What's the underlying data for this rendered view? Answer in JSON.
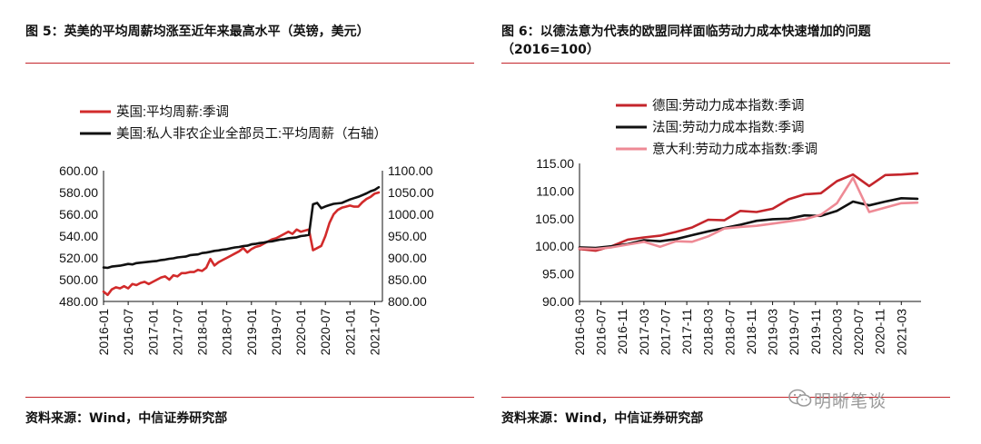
{
  "left": {
    "title": "图 5：英美的平均周薪均涨至近年来最高水平（英镑，美元）",
    "source": "资料来源：Wind，中信证券研究部",
    "chart_data": {
      "type": "line",
      "x_ticks": [
        "2016-01",
        "2016-07",
        "2017-01",
        "2017-07",
        "2018-01",
        "2018-07",
        "2019-01",
        "2019-07",
        "2020-01",
        "2020-07",
        "2021-01",
        "2021-07"
      ],
      "y_left_ticks": [
        "600.00",
        "580.00",
        "560.00",
        "540.00",
        "520.00",
        "500.00",
        "480.00"
      ],
      "y_right_ticks": [
        "1100.00",
        "1050.00",
        "1000.00",
        "950.00",
        "900.00",
        "850.00",
        "800.00"
      ],
      "ylim_left": [
        480,
        600
      ],
      "ylim_right": [
        800,
        1100
      ],
      "legend_position": "top-left",
      "series": [
        {
          "name": "英国:平均周薪:季调",
          "color": "#d22b2b",
          "axis": "left",
          "x": [
            "2016-01",
            "2016-02",
            "2016-03",
            "2016-04",
            "2016-05",
            "2016-06",
            "2016-07",
            "2016-08",
            "2016-09",
            "2016-10",
            "2016-11",
            "2016-12",
            "2017-01",
            "2017-02",
            "2017-03",
            "2017-04",
            "2017-05",
            "2017-06",
            "2017-07",
            "2017-08",
            "2017-09",
            "2017-10",
            "2017-11",
            "2017-12",
            "2018-01",
            "2018-02",
            "2018-03",
            "2018-04",
            "2018-05",
            "2018-06",
            "2018-07",
            "2018-08",
            "2018-09",
            "2018-10",
            "2018-11",
            "2018-12",
            "2019-01",
            "2019-02",
            "2019-03",
            "2019-04",
            "2019-05",
            "2019-06",
            "2019-07",
            "2019-08",
            "2019-09",
            "2019-10",
            "2019-11",
            "2019-12",
            "2020-01",
            "2020-02",
            "2020-03",
            "2020-04",
            "2020-05",
            "2020-06",
            "2020-07",
            "2020-08",
            "2020-09",
            "2020-10",
            "2020-11",
            "2020-12",
            "2021-01",
            "2021-02",
            "2021-03",
            "2021-04",
            "2021-05",
            "2021-06",
            "2021-07",
            "2021-08"
          ],
          "y": [
            489,
            486,
            491,
            493,
            492,
            494,
            492,
            496,
            495,
            497,
            498,
            496,
            498,
            500,
            502,
            503,
            500,
            504,
            503,
            506,
            506,
            507,
            507,
            509,
            508,
            511,
            519,
            513,
            516,
            518,
            520,
            522,
            524,
            526,
            529,
            525,
            528,
            530,
            531,
            533,
            535,
            537,
            538,
            540,
            542,
            544,
            542,
            546,
            544,
            545,
            546,
            527,
            529,
            531,
            540,
            552,
            560,
            564,
            566,
            567,
            568,
            567,
            567,
            571,
            574,
            576,
            579,
            580
          ]
        },
        {
          "name": "美国:私人非农企业全部员工:平均周薪（右轴）",
          "color": "#111111",
          "axis": "right",
          "x": [
            "2016-01",
            "2016-02",
            "2016-03",
            "2016-04",
            "2016-05",
            "2016-06",
            "2016-07",
            "2016-08",
            "2016-09",
            "2016-10",
            "2016-11",
            "2016-12",
            "2017-01",
            "2017-02",
            "2017-03",
            "2017-04",
            "2017-05",
            "2017-06",
            "2017-07",
            "2017-08",
            "2017-09",
            "2017-10",
            "2017-11",
            "2017-12",
            "2018-01",
            "2018-02",
            "2018-03",
            "2018-04",
            "2018-05",
            "2018-06",
            "2018-07",
            "2018-08",
            "2018-09",
            "2018-10",
            "2018-11",
            "2018-12",
            "2019-01",
            "2019-02",
            "2019-03",
            "2019-04",
            "2019-05",
            "2019-06",
            "2019-07",
            "2019-08",
            "2019-09",
            "2019-10",
            "2019-11",
            "2019-12",
            "2020-01",
            "2020-02",
            "2020-03",
            "2020-04",
            "2020-05",
            "2020-06",
            "2020-07",
            "2020-08",
            "2020-09",
            "2020-10",
            "2020-11",
            "2020-12",
            "2021-01",
            "2021-02",
            "2021-03",
            "2021-04",
            "2021-05",
            "2021-06",
            "2021-07",
            "2021-08"
          ],
          "y": [
            878,
            877,
            880,
            881,
            882,
            884,
            886,
            885,
            888,
            889,
            890,
            891,
            892,
            893,
            895,
            896,
            898,
            899,
            901,
            902,
            903,
            906,
            907,
            908,
            911,
            912,
            914,
            916,
            917,
            919,
            920,
            922,
            924,
            925,
            927,
            928,
            931,
            932,
            934,
            935,
            937,
            938,
            940,
            942,
            943,
            945,
            946,
            947,
            950,
            951,
            953,
            1023,
            1026,
            1014,
            1018,
            1021,
            1024,
            1025,
            1026,
            1030,
            1034,
            1037,
            1040,
            1044,
            1048,
            1053,
            1056,
            1062
          ]
        }
      ]
    }
  },
  "right": {
    "title_line1": "图 6：以德法意为代表的欧盟同样面临劳动力成本快速增加的问题",
    "title_line2": "（2016=100）",
    "source": "资料来源：Wind，中信证券研究部",
    "chart_data": {
      "type": "line",
      "x_ticks": [
        "2016-03",
        "2016-07",
        "2016-11",
        "2017-03",
        "2017-07",
        "2017-11",
        "2018-03",
        "2018-07",
        "2018-11",
        "2019-03",
        "2019-07",
        "2019-11",
        "2020-03",
        "2020-07",
        "2020-11",
        "2021-03"
      ],
      "y_ticks": [
        "115.00",
        "110.00",
        "105.00",
        "100.00",
        "95.00",
        "90.00"
      ],
      "ylim": [
        90,
        115
      ],
      "legend_position": "top-left",
      "series": [
        {
          "name": "德国:劳动力成本指数:季调",
          "color": "#c4252b",
          "x": [
            "2016-03",
            "2016-06",
            "2016-09",
            "2016-12",
            "2017-03",
            "2017-06",
            "2017-09",
            "2017-12",
            "2018-03",
            "2018-06",
            "2018-09",
            "2018-12",
            "2019-03",
            "2019-06",
            "2019-09",
            "2019-12",
            "2020-03",
            "2020-06",
            "2020-09",
            "2020-12",
            "2021-03",
            "2021-06"
          ],
          "y": [
            99.5,
            99.2,
            100.0,
            101.2,
            101.6,
            101.9,
            102.6,
            103.4,
            104.8,
            104.7,
            106.4,
            106.2,
            106.8,
            108.5,
            109.4,
            109.6,
            111.8,
            113.0,
            110.9,
            112.9,
            113.0,
            113.2
          ]
        },
        {
          "name": "法国:劳动力成本指数:季调",
          "color": "#111111",
          "x": [
            "2016-03",
            "2016-06",
            "2016-09",
            "2016-12",
            "2017-03",
            "2017-06",
            "2017-09",
            "2017-12",
            "2018-03",
            "2018-06",
            "2018-09",
            "2018-12",
            "2019-03",
            "2019-06",
            "2019-09",
            "2019-12",
            "2020-03",
            "2020-06",
            "2020-09",
            "2020-12",
            "2021-03",
            "2021-06"
          ],
          "y": [
            99.8,
            99.7,
            100.0,
            100.4,
            101.1,
            100.9,
            101.3,
            102.0,
            102.7,
            103.3,
            103.9,
            104.6,
            104.9,
            105.0,
            105.6,
            105.5,
            106.4,
            108.1,
            107.4,
            108.1,
            108.7,
            108.6
          ]
        },
        {
          "name": "意大利:劳动力成本指数:季调",
          "color": "#ee8a95",
          "x": [
            "2016-03",
            "2016-06",
            "2016-09",
            "2016-12",
            "2017-03",
            "2017-06",
            "2017-09",
            "2017-12",
            "2018-03",
            "2018-06",
            "2018-09",
            "2018-12",
            "2019-03",
            "2019-06",
            "2019-09",
            "2019-12",
            "2020-03",
            "2020-06",
            "2020-09",
            "2020-12",
            "2021-03",
            "2021-06"
          ],
          "y": [
            99.6,
            99.5,
            99.8,
            100.3,
            100.8,
            99.9,
            100.9,
            100.8,
            101.8,
            103.2,
            103.5,
            103.7,
            104.1,
            104.5,
            104.9,
            105.7,
            107.8,
            112.4,
            106.2,
            107.0,
            107.8,
            107.9
          ]
        }
      ]
    }
  },
  "watermark": {
    "text": "明晰笔谈",
    "icon": "wechat-icon"
  }
}
